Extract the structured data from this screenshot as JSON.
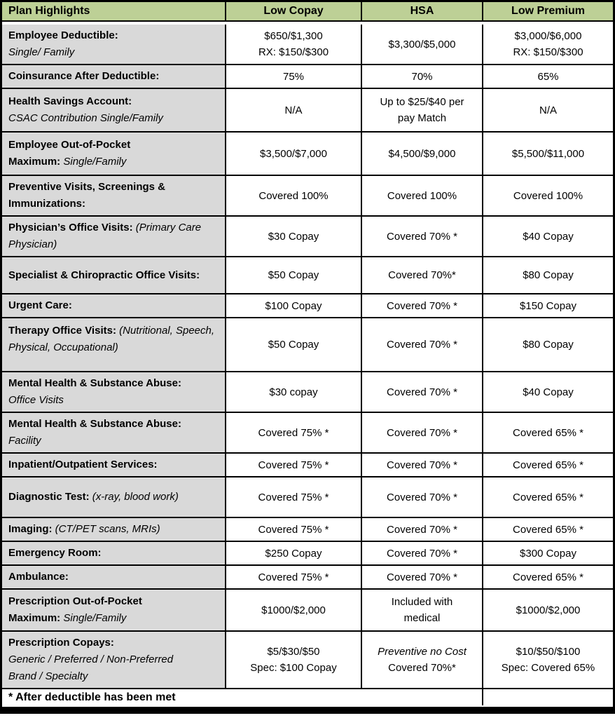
{
  "columns": [
    "Plan Highlights",
    "Low Copay",
    "HSA",
    "Low Premium"
  ],
  "colors": {
    "header_bg": "#bdd096",
    "label_bg": "#d9d9d9",
    "border": "#000000"
  },
  "rows": [
    {
      "label": [
        {
          "t": "Employee Deductible:",
          "s": "b"
        },
        {
          "t": "Single/ Family",
          "s": "i",
          "br": true
        }
      ],
      "values": [
        [
          "$650/$1,300",
          "RX: $150/$300"
        ],
        [
          "$3,300/$5,000"
        ],
        [
          "$3,000/$6,000",
          "RX: $150/$300"
        ]
      ]
    },
    {
      "label": [
        {
          "t": "Coinsurance After Deductible:",
          "s": "b"
        }
      ],
      "values": [
        [
          "75%"
        ],
        [
          "70%"
        ],
        [
          "65%"
        ]
      ]
    },
    {
      "label": [
        {
          "t": "Health Savings Account:",
          "s": "b"
        },
        {
          "t": "CSAC Contribution Single/Family",
          "s": "i",
          "br": true
        }
      ],
      "values": [
        [
          "N/A"
        ],
        [
          "Up to $25/$40 per",
          "pay Match"
        ],
        [
          "N/A"
        ]
      ]
    },
    {
      "label": [
        {
          "t": "Employee Out-of-Pocket",
          "s": "b"
        },
        {
          "t": "Maximum:",
          "s": "b",
          "br": true
        },
        {
          "t": " Single/Family",
          "s": "i"
        }
      ],
      "values": [
        [
          "$3,500/$7,000"
        ],
        [
          "$4,500/$9,000"
        ],
        [
          "$5,500/$11,000"
        ]
      ]
    },
    {
      "label": [
        {
          "t": "Preventive Visits, Screenings & Immunizations:",
          "s": "b"
        }
      ],
      "values": [
        [
          "Covered 100%"
        ],
        [
          "Covered 100%"
        ],
        [
          "Covered 100%"
        ]
      ]
    },
    {
      "label": [
        {
          "t": "Physician’s Office Visits:",
          "s": "b"
        },
        {
          "t": " (Primary Care Physician)",
          "s": "i"
        }
      ],
      "values": [
        [
          "$30 Copay"
        ],
        [
          "Covered 70% *"
        ],
        [
          "$40 Copay"
        ]
      ]
    },
    {
      "label": [
        {
          "t": "Specialist & Chiropractic Office Visits:",
          "s": "b"
        }
      ],
      "values": [
        [
          "$50 Copay"
        ],
        [
          "Covered 70%*"
        ],
        [
          "$80 Copay"
        ]
      ]
    },
    {
      "label": [
        {
          "t": "Urgent Care:",
          "s": "b"
        }
      ],
      "values": [
        [
          "$100 Copay"
        ],
        [
          "Covered 70% *"
        ],
        [
          "$150 Copay"
        ]
      ]
    },
    {
      "label": [
        {
          "t": "Therapy Office Visits:",
          "s": "b"
        },
        {
          "t": " (Nutritional, Speech, Physical, Occupational)",
          "s": "i"
        }
      ],
      "values": [
        [
          "$50 Copay"
        ],
        [
          "Covered 70% *"
        ],
        [
          "$80 Copay"
        ]
      ]
    },
    {
      "label": [
        {
          "t": "Mental Health & Substance Abuse:",
          "s": "b"
        },
        {
          "t": "Office Visits",
          "s": "i",
          "br": true
        }
      ],
      "values": [
        [
          "$30 copay"
        ],
        [
          "Covered 70% *"
        ],
        [
          "$40 Copay"
        ]
      ]
    },
    {
      "label": [
        {
          "t": "Mental Health & Substance Abuse:",
          "s": "b"
        },
        {
          "t": "Facility",
          "s": "i",
          "br": true
        }
      ],
      "values": [
        [
          "Covered 75% *"
        ],
        [
          "Covered 70% *"
        ],
        [
          "Covered 65% *"
        ]
      ]
    },
    {
      "label": [
        {
          "t": "Inpatient/Outpatient Services:",
          "s": "b"
        }
      ],
      "values": [
        [
          "Covered 75% *"
        ],
        [
          "Covered 70% *"
        ],
        [
          "Covered 65% *"
        ]
      ]
    },
    {
      "label": [
        {
          "t": "Diagnostic Test:",
          "s": "b"
        },
        {
          "t": " (x-ray, blood work)",
          "s": "i"
        }
      ],
      "values": [
        [
          "Covered 75% *"
        ],
        [
          "Covered 70% *"
        ],
        [
          "Covered 65% *"
        ]
      ]
    },
    {
      "label": [
        {
          "t": "Imaging:",
          "s": "b"
        },
        {
          "t": " (CT/PET scans, MRIs)",
          "s": "i"
        }
      ],
      "values": [
        [
          "Covered 75% *"
        ],
        [
          "Covered 70% *"
        ],
        [
          "Covered 65% *"
        ]
      ]
    },
    {
      "label": [
        {
          "t": "Emergency Room:",
          "s": "b"
        }
      ],
      "values": [
        [
          "$250 Copay"
        ],
        [
          "Covered 70% *"
        ],
        [
          "$300 Copay"
        ]
      ]
    },
    {
      "label": [
        {
          "t": "Ambulance:",
          "s": "b"
        }
      ],
      "values": [
        [
          "Covered 75% *"
        ],
        [
          "Covered 70% *"
        ],
        [
          "Covered 65% *"
        ]
      ]
    },
    {
      "label": [
        {
          "t": "Prescription Out-of-Pocket",
          "s": "b"
        },
        {
          "t": "Maximum:",
          "s": "b",
          "br": true
        },
        {
          "t": " Single/Family",
          "s": "i"
        }
      ],
      "values": [
        [
          "$1000/$2,000"
        ],
        [
          "Included with",
          "medical"
        ],
        [
          "$1000/$2,000"
        ]
      ]
    },
    {
      "label": [
        {
          "t": "Prescription Copays:",
          "s": "b"
        },
        {
          "t": "Generic / Preferred / Non-Preferred",
          "s": "i",
          "br": true
        },
        {
          "t": "Brand / Specialty",
          "s": "i",
          "br": true
        }
      ],
      "values": [
        [
          "$5/$30/$50",
          "Spec: $100 Copay"
        ],
        [
          {
            "t": "Preventive no Cost",
            "i": true
          },
          "Covered 70%*"
        ],
        [
          "$10/$50/$100",
          "Spec: Covered 65%"
        ]
      ]
    }
  ],
  "footer": {
    "note": "* After deductible has been met"
  }
}
